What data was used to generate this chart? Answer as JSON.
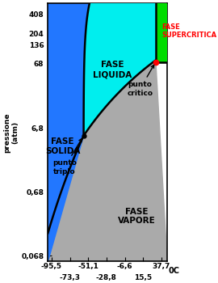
{
  "xlabel": "0C",
  "ylabel": "pressione\n(atm)",
  "x_ticks_all": [
    -95.5,
    -73.3,
    -51.1,
    -28.8,
    -6.6,
    15.5,
    37.7
  ],
  "x_tick_labels_row1": [
    "-95,5",
    "",
    "-51,1",
    "",
    "-6,6",
    "",
    "37,7"
  ],
  "x_tick_labels_row2": [
    "",
    "-73,3",
    "",
    "-28,8",
    "",
    "15,5",
    ""
  ],
  "y_ticks_val": [
    0.068,
    0.68,
    6.8,
    68,
    136,
    204,
    408
  ],
  "y_tick_labels": [
    "0,068",
    "0,68",
    "6,8",
    "68",
    "136",
    "204",
    "408"
  ],
  "xlim": [
    -100,
    45
  ],
  "color_solid": "#2277FF",
  "color_liquid": "#00EEEE",
  "color_vapor": "#AAAAAA",
  "color_supercritical": "#00DD00",
  "color_bg": "#FFFFFF",
  "T_triple": -56.6,
  "P_triple": 5.11,
  "T_critical": 31.0,
  "P_critical": 72.8,
  "label_solid": "FASE\nSOLIDA",
  "label_liquid": "FASE\nLIQUIDA",
  "label_vapor": "FASE\nVAPORE",
  "label_supercritical": "FASE\nSUPERCRITICA",
  "label_triple": "punto\ntriplo",
  "label_critical": "punto\ncritico"
}
